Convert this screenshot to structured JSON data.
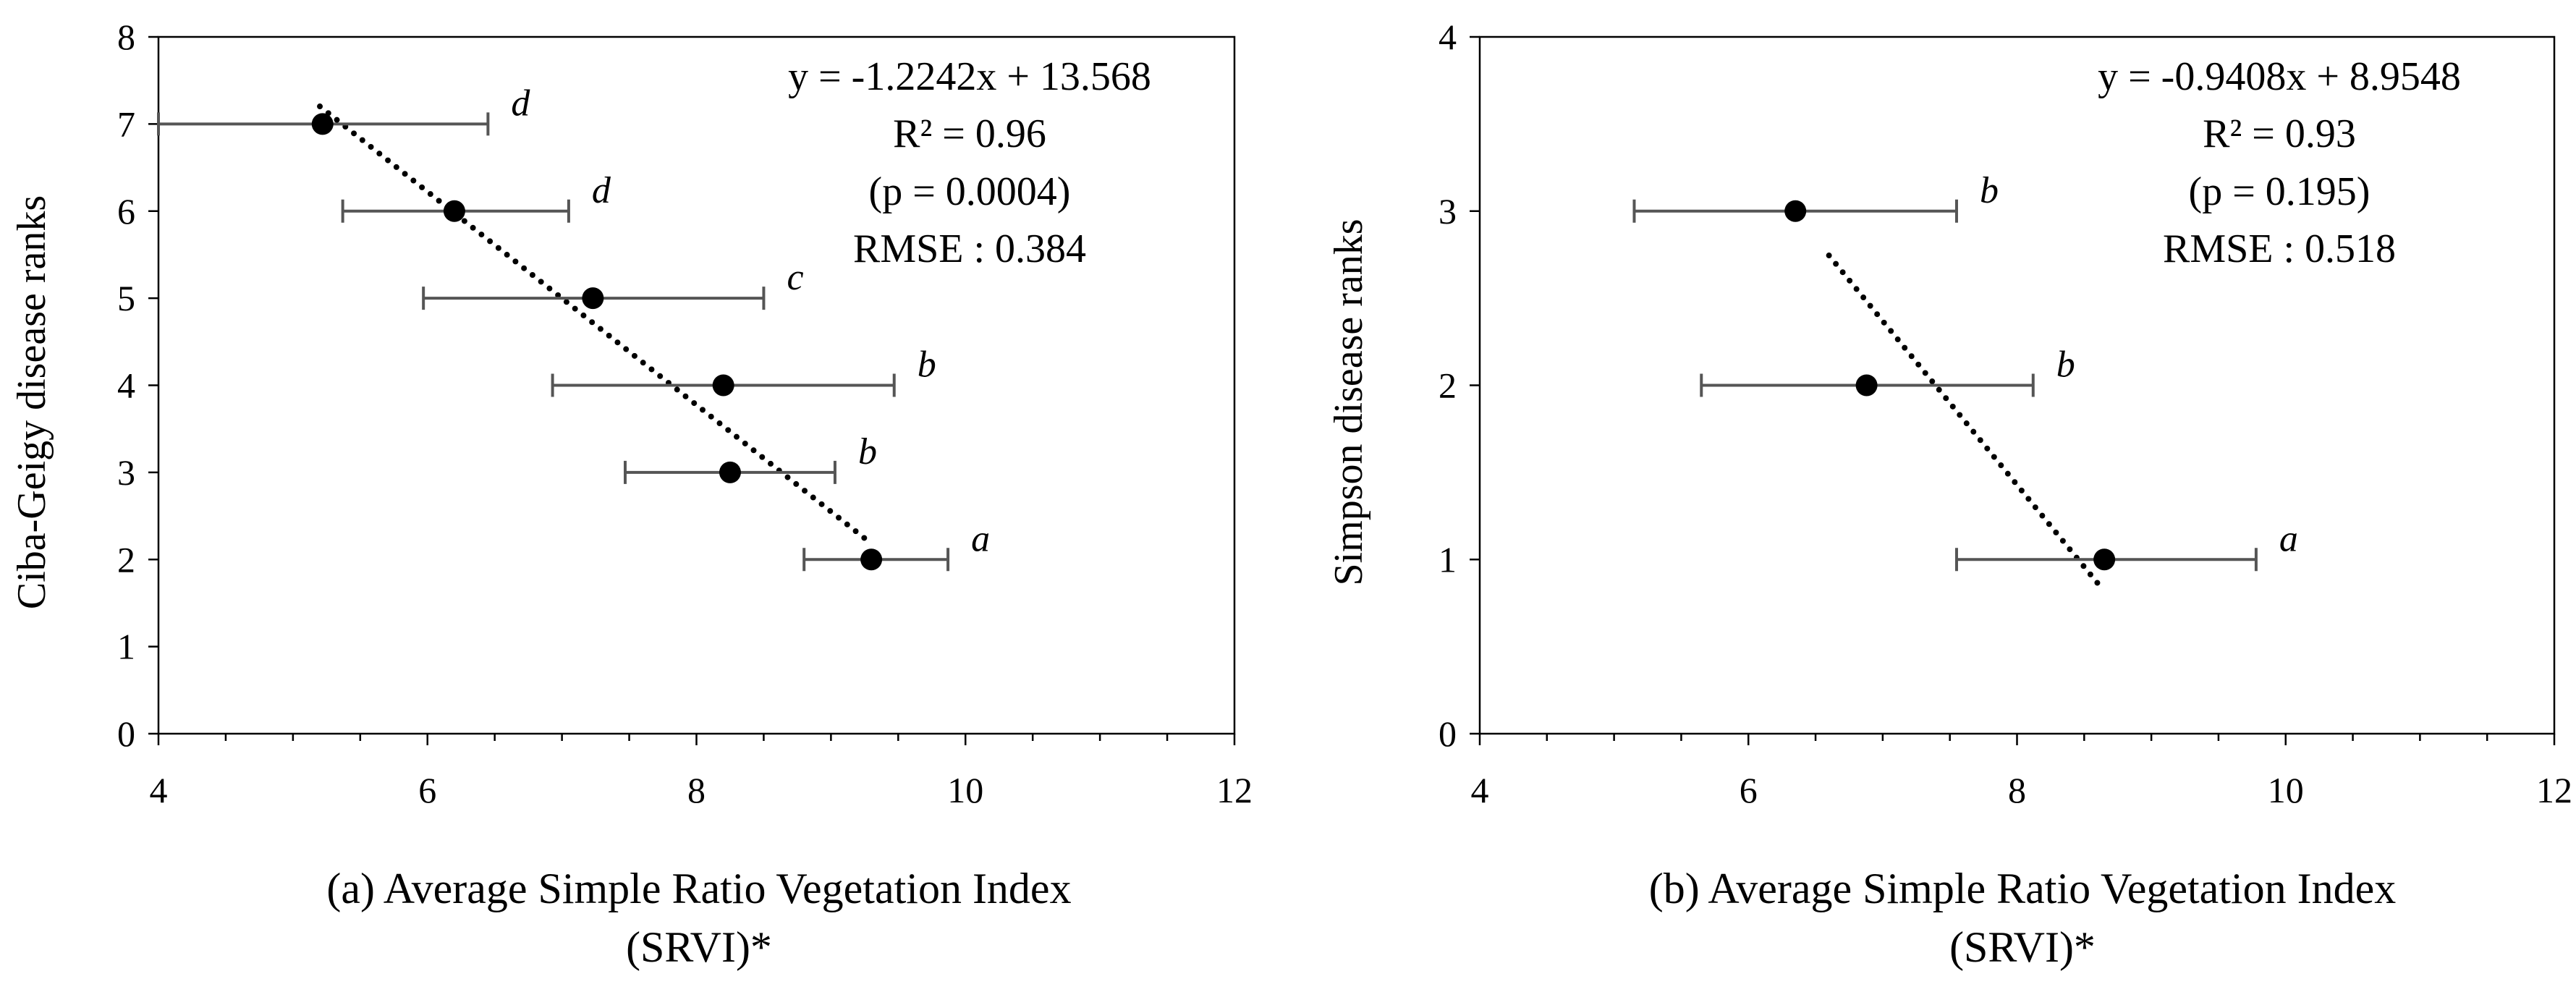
{
  "chart_data": [
    {
      "type": "scatter",
      "id": "a",
      "caption_lines": [
        "(a)  Average Simple Ratio Vegetation Index",
        "(SRVI)*"
      ],
      "xlabel": "",
      "ylabel": "Ciba-Geigy disease ranks",
      "xlim": [
        4,
        12
      ],
      "ylim": [
        0,
        8
      ],
      "xticks": [
        4,
        6,
        8,
        10,
        12
      ],
      "yticks": [
        0,
        1,
        2,
        3,
        4,
        5,
        6,
        7,
        8
      ],
      "grid": false,
      "series": [
        {
          "name": "disease ranks",
          "points": [
            {
              "x": 5.22,
              "y": 7,
              "xerr_low": 4.0,
              "xerr_high": 6.45,
              "letter": "d"
            },
            {
              "x": 6.2,
              "y": 6,
              "xerr_low": 5.37,
              "xerr_high": 7.05,
              "letter": "d"
            },
            {
              "x": 7.23,
              "y": 5,
              "xerr_low": 5.97,
              "xerr_high": 8.5,
              "letter": "c"
            },
            {
              "x": 8.2,
              "y": 4,
              "xerr_low": 6.93,
              "xerr_high": 9.47,
              "letter": "b"
            },
            {
              "x": 8.25,
              "y": 3,
              "xerr_low": 7.47,
              "xerr_high": 9.03,
              "letter": "b"
            },
            {
              "x": 9.3,
              "y": 2,
              "xerr_low": 8.8,
              "xerr_high": 9.87,
              "letter": "a"
            }
          ]
        }
      ],
      "trendline": {
        "slope": -1.2242,
        "intercept": 13.568,
        "x_from": 5.2,
        "x_to": 9.3
      },
      "annotations": [
        "y = -1.2242x + 13.568",
        "R² = 0.96",
        "(p = 0.0004)",
        "RMSE : 0.384"
      ]
    },
    {
      "type": "scatter",
      "id": "b",
      "caption_lines": [
        "(b) Average Simple Ratio Vegetation Index",
        "(SRVI)*"
      ],
      "xlabel": "",
      "ylabel": "Simpson disease ranks",
      "xlim": [
        4,
        12
      ],
      "ylim": [
        0,
        4
      ],
      "xticks": [
        4,
        6,
        8,
        10,
        12
      ],
      "yticks": [
        0,
        1,
        2,
        3,
        4
      ],
      "grid": false,
      "series": [
        {
          "name": "disease ranks",
          "points": [
            {
              "x": 6.35,
              "y": 3,
              "xerr_low": 5.15,
              "xerr_high": 7.55,
              "letter": "b"
            },
            {
              "x": 6.88,
              "y": 2,
              "xerr_low": 5.65,
              "xerr_high": 8.12,
              "letter": "b"
            },
            {
              "x": 8.65,
              "y": 1,
              "xerr_low": 7.55,
              "xerr_high": 9.78,
              "letter": "a"
            }
          ]
        }
      ],
      "trendline": {
        "slope": -0.9408,
        "intercept": 8.9548,
        "x_from": 6.6,
        "x_to": 8.6
      },
      "annotations": [
        "y = -0.9408x + 8.9548",
        "R² = 0.93",
        "(p = 0.195)",
        "RMSE : 0.518"
      ]
    }
  ]
}
